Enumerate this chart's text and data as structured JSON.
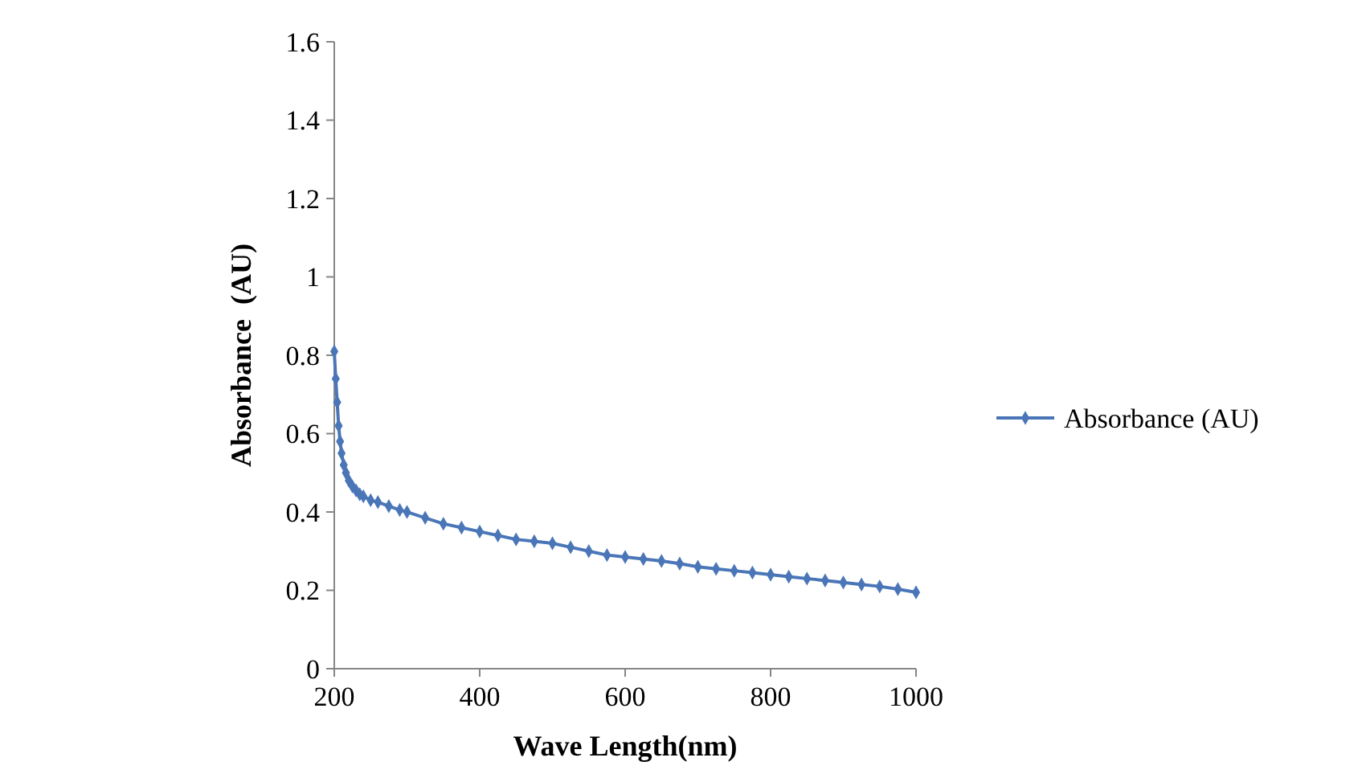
{
  "chart_data": {
    "type": "line",
    "xlabel": "Wave Length(nm)",
    "ylabel": "Absorbance  (AU)",
    "xlim": [
      200,
      1000
    ],
    "xticks": [
      200,
      400,
      600,
      800,
      1000
    ],
    "ylim": [
      0,
      1.6
    ],
    "yticks": [
      0,
      0.2,
      0.4,
      0.6,
      0.8,
      1,
      1.2,
      1.4,
      1.6
    ],
    "grid": false,
    "legend": "right",
    "marker": "diamond",
    "line_style": "solid",
    "series": [
      {
        "name": "Absorbance (AU)",
        "color": "#4a76b8",
        "x": [
          200,
          202,
          204,
          206,
          208,
          210,
          213,
          216,
          220,
          225,
          230,
          235,
          240,
          250,
          260,
          275,
          290,
          300,
          325,
          350,
          375,
          400,
          425,
          450,
          475,
          500,
          525,
          550,
          575,
          600,
          625,
          650,
          675,
          700,
          725,
          750,
          775,
          800,
          825,
          850,
          875,
          900,
          925,
          950,
          975,
          1000
        ],
        "values": [
          0.81,
          0.74,
          0.68,
          0.62,
          0.58,
          0.55,
          0.52,
          0.5,
          0.48,
          0.465,
          0.455,
          0.445,
          0.44,
          0.43,
          0.425,
          0.415,
          0.405,
          0.4,
          0.385,
          0.37,
          0.36,
          0.35,
          0.34,
          0.33,
          0.325,
          0.32,
          0.31,
          0.3,
          0.29,
          0.285,
          0.28,
          0.275,
          0.268,
          0.26,
          0.255,
          0.25,
          0.245,
          0.24,
          0.235,
          0.23,
          0.225,
          0.22,
          0.215,
          0.21,
          0.203,
          0.195
        ]
      }
    ]
  }
}
